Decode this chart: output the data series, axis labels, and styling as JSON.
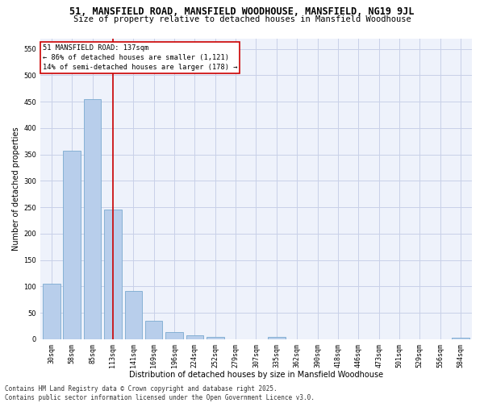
{
  "title": "51, MANSFIELD ROAD, MANSFIELD WOODHOUSE, MANSFIELD, NG19 9JL",
  "subtitle": "Size of property relative to detached houses in Mansfield Woodhouse",
  "xlabel": "Distribution of detached houses by size in Mansfield Woodhouse",
  "ylabel": "Number of detached properties",
  "categories": [
    "30sqm",
    "58sqm",
    "85sqm",
    "113sqm",
    "141sqm",
    "169sqm",
    "196sqm",
    "224sqm",
    "252sqm",
    "279sqm",
    "307sqm",
    "335sqm",
    "362sqm",
    "390sqm",
    "418sqm",
    "446sqm",
    "473sqm",
    "501sqm",
    "529sqm",
    "556sqm",
    "584sqm"
  ],
  "values": [
    105,
    357,
    455,
    245,
    92,
    35,
    13,
    7,
    4,
    0,
    0,
    4,
    0,
    0,
    0,
    0,
    0,
    0,
    0,
    0,
    3
  ],
  "bar_color": "#b8ceeb",
  "bar_edge_color": "#7aaad0",
  "vline_x_idx": 3,
  "vline_color": "#cc0000",
  "annotation_text": "51 MANSFIELD ROAD: 137sqm\n← 86% of detached houses are smaller (1,121)\n14% of semi-detached houses are larger (178) →",
  "annotation_box_color": "#ffffff",
  "annotation_box_edge": "#cc0000",
  "ylim": [
    0,
    570
  ],
  "yticks": [
    0,
    50,
    100,
    150,
    200,
    250,
    300,
    350,
    400,
    450,
    500,
    550
  ],
  "background_color": "#eef2fb",
  "grid_color": "#c8d0e8",
  "title_fontsize": 8.5,
  "subtitle_fontsize": 7.5,
  "axis_label_fontsize": 7,
  "tick_fontsize": 6,
  "ylabel_fontsize": 7,
  "footer_text": "Contains HM Land Registry data © Crown copyright and database right 2025.\nContains public sector information licensed under the Open Government Licence v3.0.",
  "footer_fontsize": 5.5
}
